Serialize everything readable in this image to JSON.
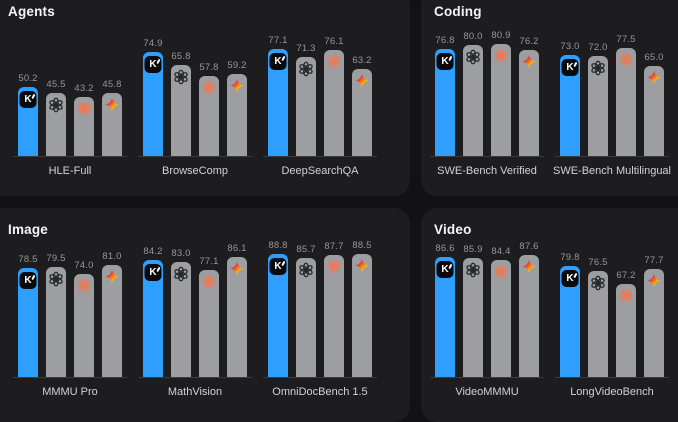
{
  "colors": {
    "page_background": "#121214",
    "panel_background": "#1D1D1F",
    "kimi_bar_blue": "#2E9FFF",
    "competitor_bar_gray": "#9D9EA1",
    "value_label_gray": "#97979B",
    "benchmark_label_gray": "#D2D2D4",
    "baseline_line": "#3B3B3E",
    "anthropic_asterisk_orange": "#EC7A5A",
    "openai_logo_dark": "#26262A",
    "kimi_badge_black": "#0A0A0C"
  },
  "series_icons": [
    "k-logo",
    "openai-logo",
    "anthropic-asterisk-logo",
    "gemini-star-logo"
  ],
  "chart_data": [
    {
      "type": "bar",
      "title": "Agents",
      "categories": [
        "HLE-Full",
        "BrowseComp",
        "DeepSearchQA"
      ],
      "series": [
        {
          "name": "k-logo",
          "values": [
            50.2,
            74.9,
            77.1
          ]
        },
        {
          "name": "openai-logo",
          "values": [
            45.5,
            65.8,
            71.3
          ]
        },
        {
          "name": "anthropic-asterisk-logo",
          "values": [
            43.2,
            57.8,
            76.1
          ]
        },
        {
          "name": "gemini-star-logo",
          "values": [
            45.8,
            59.2,
            63.2
          ]
        }
      ],
      "ylim": [
        0,
        100
      ],
      "grid": false,
      "legend": "icons-on-bars",
      "value_labels": true
    },
    {
      "type": "bar",
      "title": "Coding",
      "categories": [
        "SWE-Bench Verified",
        "SWE-Bench Multilingual"
      ],
      "series": [
        {
          "name": "k-logo",
          "values": [
            76.8,
            73.0
          ]
        },
        {
          "name": "openai-logo",
          "values": [
            80.0,
            72.0
          ]
        },
        {
          "name": "anthropic-asterisk-logo",
          "values": [
            80.9,
            77.5
          ]
        },
        {
          "name": "gemini-star-logo",
          "values": [
            76.2,
            65.0
          ]
        }
      ],
      "ylim": [
        0,
        100
      ],
      "grid": false,
      "legend": "icons-on-bars",
      "value_labels": true
    },
    {
      "type": "bar",
      "title": "Image",
      "categories": [
        "MMMU Pro",
        "MathVision",
        "OmniDocBench 1.5"
      ],
      "series": [
        {
          "name": "k-logo",
          "values": [
            78.5,
            84.2,
            88.8
          ]
        },
        {
          "name": "openai-logo",
          "values": [
            79.5,
            83.0,
            85.7
          ]
        },
        {
          "name": "anthropic-asterisk-logo",
          "values": [
            74.0,
            77.1,
            87.7
          ]
        },
        {
          "name": "gemini-star-logo",
          "values": [
            81.0,
            86.1,
            88.5
          ]
        }
      ],
      "ylim": [
        0,
        100
      ],
      "grid": false,
      "legend": "icons-on-bars",
      "value_labels": true
    },
    {
      "type": "bar",
      "title": "Video",
      "categories": [
        "VideoMMMU",
        "LongVideoBench"
      ],
      "series": [
        {
          "name": "k-logo",
          "values": [
            86.6,
            79.8
          ]
        },
        {
          "name": "openai-logo",
          "values": [
            85.9,
            76.5
          ]
        },
        {
          "name": "anthropic-asterisk-logo",
          "values": [
            84.4,
            67.2
          ]
        },
        {
          "name": "gemini-star-logo",
          "values": [
            87.6,
            77.7
          ]
        }
      ],
      "ylim": [
        0,
        100
      ],
      "grid": false,
      "legend": "icons-on-bars",
      "value_labels": true
    }
  ]
}
